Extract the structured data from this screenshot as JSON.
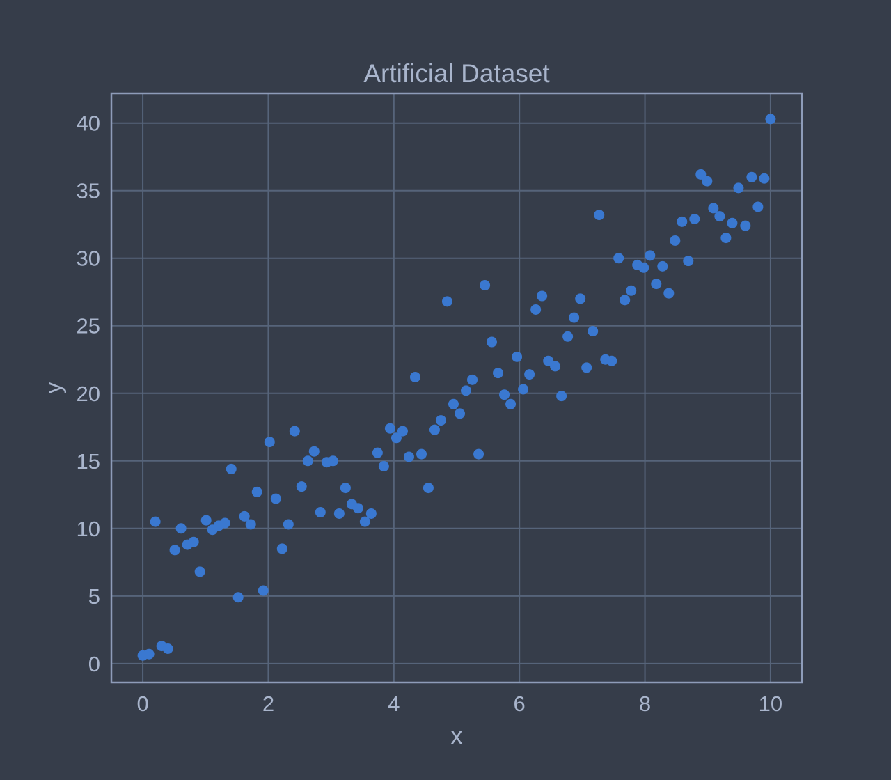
{
  "colors": {
    "background": "#363d4a",
    "grid": "#56647a",
    "frame": "#8e9cb9",
    "text": "#a9b5cc",
    "point": "#3a78d0"
  },
  "chart_data": {
    "type": "scatter",
    "title": "Artificial Dataset",
    "xlabel": "x",
    "ylabel": "y",
    "xlim": [
      -0.5,
      10.5
    ],
    "ylim": [
      -1.4,
      42.2
    ],
    "xticks": [
      0,
      2,
      4,
      6,
      8,
      10
    ],
    "yticks": [
      0,
      5,
      10,
      15,
      20,
      25,
      30,
      35,
      40
    ],
    "grid": true,
    "legend": "none",
    "series": [
      {
        "points": [
          [
            0.0,
            0.6
          ],
          [
            0.1,
            0.7
          ],
          [
            0.2,
            10.5
          ],
          [
            0.3,
            1.3
          ],
          [
            0.4,
            1.1
          ],
          [
            0.51,
            8.4
          ],
          [
            0.61,
            10.0
          ],
          [
            0.71,
            8.8
          ],
          [
            0.81,
            9.0
          ],
          [
            0.91,
            6.8
          ],
          [
            1.01,
            10.6
          ],
          [
            1.11,
            9.9
          ],
          [
            1.21,
            10.2
          ],
          [
            1.31,
            10.4
          ],
          [
            1.41,
            14.4
          ],
          [
            1.52,
            4.9
          ],
          [
            1.62,
            10.9
          ],
          [
            1.72,
            10.3
          ],
          [
            1.82,
            12.7
          ],
          [
            1.92,
            5.4
          ],
          [
            2.02,
            16.4
          ],
          [
            2.12,
            12.2
          ],
          [
            2.22,
            8.5
          ],
          [
            2.32,
            10.3
          ],
          [
            2.42,
            17.2
          ],
          [
            2.53,
            13.1
          ],
          [
            2.63,
            15.0
          ],
          [
            2.73,
            15.7
          ],
          [
            2.83,
            11.2
          ],
          [
            2.93,
            14.9
          ],
          [
            3.03,
            15.0
          ],
          [
            3.13,
            11.1
          ],
          [
            3.23,
            13.0
          ],
          [
            3.33,
            11.8
          ],
          [
            3.43,
            11.5
          ],
          [
            3.54,
            10.5
          ],
          [
            3.64,
            11.1
          ],
          [
            3.74,
            15.6
          ],
          [
            3.84,
            14.6
          ],
          [
            3.94,
            17.4
          ],
          [
            4.04,
            16.7
          ],
          [
            4.14,
            17.2
          ],
          [
            4.24,
            15.3
          ],
          [
            4.34,
            21.2
          ],
          [
            4.44,
            15.5
          ],
          [
            4.55,
            13.0
          ],
          [
            4.65,
            17.3
          ],
          [
            4.75,
            18.0
          ],
          [
            4.85,
            26.8
          ],
          [
            4.95,
            19.2
          ],
          [
            5.05,
            18.5
          ],
          [
            5.15,
            20.2
          ],
          [
            5.25,
            21.0
          ],
          [
            5.35,
            15.5
          ],
          [
            5.45,
            28.0
          ],
          [
            5.56,
            23.8
          ],
          [
            5.66,
            21.5
          ],
          [
            5.76,
            19.9
          ],
          [
            5.86,
            19.2
          ],
          [
            5.96,
            22.7
          ],
          [
            6.06,
            20.3
          ],
          [
            6.16,
            21.4
          ],
          [
            6.26,
            26.2
          ],
          [
            6.36,
            27.2
          ],
          [
            6.46,
            22.4
          ],
          [
            6.57,
            22.0
          ],
          [
            6.67,
            19.8
          ],
          [
            6.77,
            24.2
          ],
          [
            6.87,
            25.6
          ],
          [
            6.97,
            27.0
          ],
          [
            7.07,
            21.9
          ],
          [
            7.17,
            24.6
          ],
          [
            7.27,
            33.2
          ],
          [
            7.37,
            22.5
          ],
          [
            7.47,
            22.4
          ],
          [
            7.58,
            30.0
          ],
          [
            7.68,
            26.9
          ],
          [
            7.78,
            27.6
          ],
          [
            7.88,
            29.5
          ],
          [
            7.98,
            29.3
          ],
          [
            8.08,
            30.2
          ],
          [
            8.18,
            28.1
          ],
          [
            8.28,
            29.4
          ],
          [
            8.38,
            27.4
          ],
          [
            8.48,
            31.3
          ],
          [
            8.59,
            32.7
          ],
          [
            8.69,
            29.8
          ],
          [
            8.79,
            32.9
          ],
          [
            8.89,
            36.2
          ],
          [
            8.99,
            35.7
          ],
          [
            9.09,
            33.7
          ],
          [
            9.19,
            33.1
          ],
          [
            9.29,
            31.5
          ],
          [
            9.39,
            32.6
          ],
          [
            9.49,
            35.2
          ],
          [
            9.6,
            32.4
          ],
          [
            9.7,
            36.0
          ],
          [
            9.8,
            33.8
          ],
          [
            9.9,
            35.9
          ],
          [
            10.0,
            40.3
          ]
        ]
      }
    ]
  }
}
